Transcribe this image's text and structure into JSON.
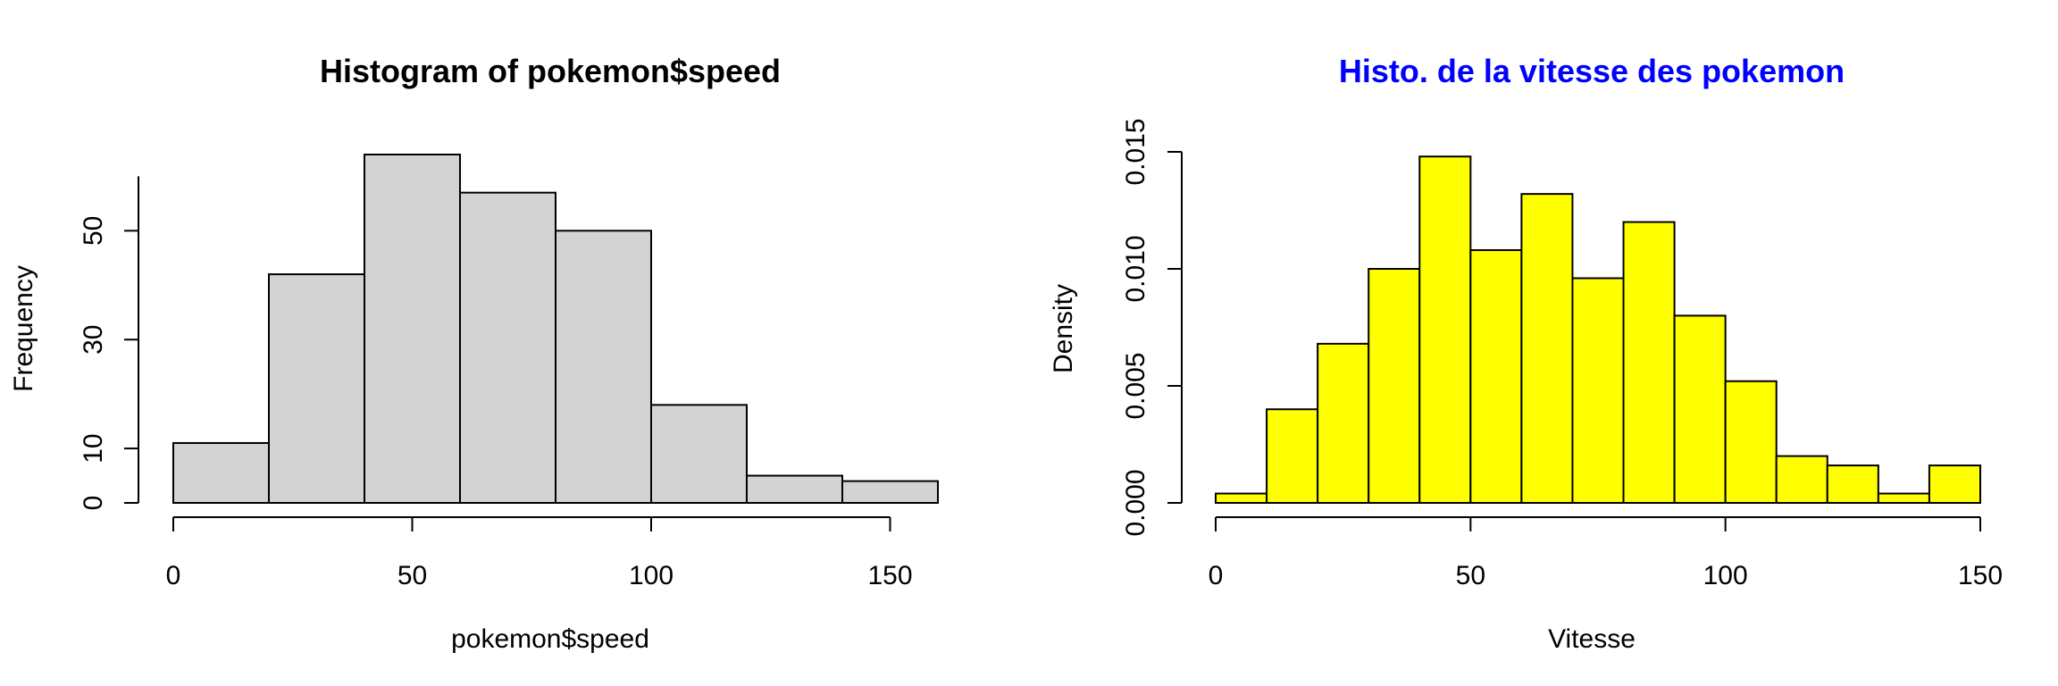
{
  "chart_data": [
    {
      "type": "bar",
      "title": "Histogram of pokemon$speed",
      "title_color": "#000000",
      "xlabel": "pokemon$speed",
      "ylabel": "Frequency",
      "bar_color": "#D3D3D3",
      "breaks": [
        0,
        20,
        40,
        60,
        80,
        100,
        120,
        140,
        160
      ],
      "values": [
        11,
        42,
        64,
        57,
        50,
        18,
        5,
        4
      ],
      "xlim": [
        0,
        160
      ],
      "ylim": [
        0,
        64
      ],
      "xticks": [
        0,
        50,
        100,
        150
      ],
      "xtick_labels": [
        "0",
        "50",
        "100",
        "150"
      ],
      "yticks": [
        0,
        10,
        30,
        50
      ],
      "ytick_labels": [
        "0",
        "10",
        "30",
        "50"
      ],
      "yaxis_range": [
        0,
        60
      ]
    },
    {
      "type": "bar",
      "title": "Histo. de la vitesse des pokemon",
      "title_color": "#0000FF",
      "xlabel": "Vitesse",
      "ylabel": "Density",
      "bar_color": "#FFFF00",
      "breaks": [
        0,
        10,
        20,
        30,
        40,
        50,
        60,
        70,
        80,
        90,
        100,
        110,
        120,
        130,
        140,
        150
      ],
      "values": [
        0.0004,
        0.004,
        0.0068,
        0.01,
        0.0148,
        0.0108,
        0.0132,
        0.0096,
        0.012,
        0.008,
        0.0052,
        0.002,
        0.0016,
        0.0004,
        0.0016
      ],
      "xlim": [
        0,
        150
      ],
      "ylim": [
        0,
        0.015
      ],
      "xticks": [
        0,
        50,
        100,
        150
      ],
      "xtick_labels": [
        "0",
        "50",
        "100",
        "150"
      ],
      "yticks": [
        0,
        0.005,
        0.01,
        0.015
      ],
      "ytick_labels": [
        "0.000",
        "0.005",
        "0.010",
        "0.015"
      ],
      "yaxis_range": [
        0,
        0.015
      ]
    }
  ]
}
